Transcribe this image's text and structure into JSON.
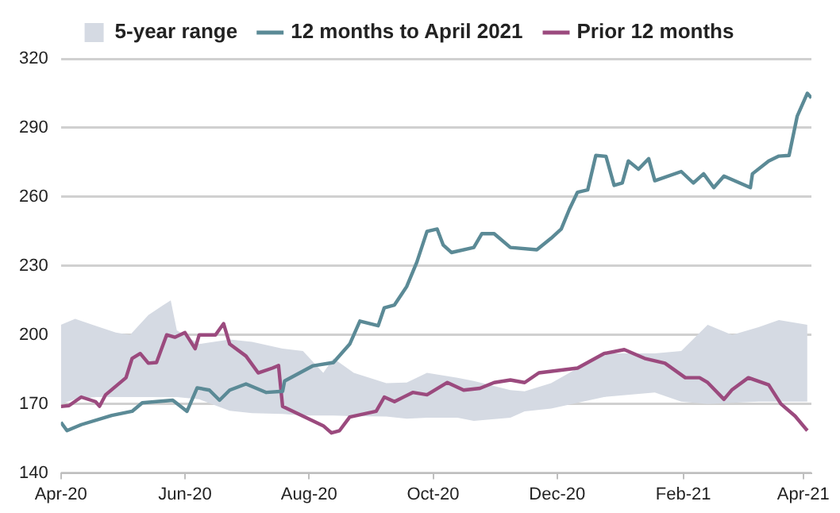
{
  "chart_data": {
    "type": "line",
    "xlim": [
      "2020-04-01",
      "2021-04-05"
    ],
    "xticks": [
      {
        "value": "2020-04-01",
        "label": "Apr-20"
      },
      {
        "value": "2020-06-01",
        "label": "Jun-20"
      },
      {
        "value": "2020-08-01",
        "label": "Aug-20"
      },
      {
        "value": "2020-10-01",
        "label": "Oct-20"
      },
      {
        "value": "2020-12-01",
        "label": "Dec-20"
      },
      {
        "value": "2021-02-01",
        "label": "Feb-21"
      },
      {
        "value": "2021-04-01",
        "label": "Apr-21"
      }
    ],
    "ylim": [
      140,
      320
    ],
    "yticks": [
      140,
      170,
      200,
      230,
      260,
      290,
      320
    ],
    "grid": "y",
    "legend": "top",
    "marker": "none",
    "line_style": "solid",
    "series": [
      {
        "name": "5-year range",
        "type": "area",
        "color": "#d5dae3",
        "x": [
          "2020-04-01",
          "2020-04-08",
          "2020-04-18",
          "2020-04-28",
          "2020-05-05",
          "2020-05-14",
          "2020-05-21",
          "2020-05-25",
          "2020-05-28",
          "2020-06-08",
          "2020-06-23",
          "2020-07-04",
          "2020-07-19",
          "2020-07-29",
          "2020-08-08",
          "2020-08-13",
          "2020-08-23",
          "2020-09-08",
          "2020-09-18",
          "2020-09-28",
          "2020-10-13",
          "2020-10-21",
          "2020-11-08",
          "2020-11-15",
          "2020-11-28",
          "2020-12-24",
          "2021-01-18",
          "2021-01-31",
          "2021-02-13",
          "2021-02-25",
          "2021-03-10",
          "2021-03-20",
          "2021-04-03"
        ],
        "values": [
          null,
          null,
          null,
          null,
          null,
          null,
          null,
          null,
          null,
          null,
          null,
          null,
          null,
          null,
          null,
          null,
          null,
          null,
          null,
          null,
          null,
          null,
          null,
          null,
          null,
          null,
          null,
          null,
          null,
          null,
          null,
          null,
          null
        ],
        "lower": [
          170,
          172,
          173,
          173,
          173,
          173,
          173,
          173,
          173,
          172,
          167,
          166,
          165.7,
          165,
          165,
          165,
          164.7,
          164.5,
          163.6,
          164,
          164,
          162.6,
          164,
          166.8,
          168,
          173,
          175,
          171,
          170,
          170.5,
          171,
          171,
          171
        ],
        "upper": [
          204.4,
          207,
          204,
          201,
          200,
          208.6,
          212.8,
          215,
          202,
          196,
          198,
          197,
          194,
          193,
          183.5,
          189.8,
          183.5,
          179,
          179.3,
          183.5,
          181.4,
          180,
          176,
          175.5,
          179,
          192,
          192,
          193,
          204.4,
          200,
          203.4,
          206.5,
          204.4
        ]
      },
      {
        "name": "12 months to April 2021",
        "color": "#5b8a96",
        "x": [
          "2020-04-01",
          "2020-04-04",
          "2020-04-11",
          "2020-04-26",
          "2020-05-06",
          "2020-05-11",
          "2020-05-26",
          "2020-06-02",
          "2020-06-07",
          "2020-06-13",
          "2020-06-18",
          "2020-06-23",
          "2020-07-01",
          "2020-07-11",
          "2020-07-19",
          "2020-07-20",
          "2020-08-03",
          "2020-08-13",
          "2020-08-21",
          "2020-08-26",
          "2020-09-04",
          "2020-09-07",
          "2020-09-12",
          "2020-09-18",
          "2020-09-23",
          "2020-09-28",
          "2020-10-03",
          "2020-10-06",
          "2020-10-10",
          "2020-10-21",
          "2020-10-25",
          "2020-10-31",
          "2020-11-08",
          "2020-11-21",
          "2020-11-28",
          "2020-12-03",
          "2020-12-07",
          "2020-12-11",
          "2020-12-16",
          "2020-12-20",
          "2020-12-25",
          "2020-12-29",
          "2021-01-02",
          "2021-01-05",
          "2021-01-10",
          "2021-01-15",
          "2021-01-18",
          "2021-01-31",
          "2021-02-06",
          "2021-02-11",
          "2021-02-16",
          "2021-02-21",
          "2021-03-06",
          "2021-03-07",
          "2021-03-15",
          "2021-03-20",
          "2021-03-25",
          "2021-03-29",
          "2021-04-03",
          "2021-04-05"
        ],
        "values": [
          162,
          158.4,
          161,
          165,
          166.8,
          170.5,
          171.6,
          166.8,
          177,
          176,
          171.6,
          176,
          178.7,
          175,
          175.5,
          180,
          186.6,
          188,
          196,
          206,
          204,
          211.8,
          213,
          221,
          231.6,
          245,
          246,
          239,
          235.8,
          238,
          244,
          244,
          238,
          237,
          242,
          246,
          254.6,
          262,
          263,
          278,
          277.6,
          265,
          266,
          275.6,
          272,
          276.6,
          267,
          271,
          266,
          270,
          264,
          269,
          264,
          270,
          275.6,
          277.7,
          278,
          295,
          305,
          303
        ]
      },
      {
        "name": "Prior 12 months",
        "color": "#9b4a7e",
        "x": [
          "2020-04-01",
          "2020-04-05",
          "2020-04-11",
          "2020-04-18",
          "2020-04-20",
          "2020-04-23",
          "2020-05-03",
          "2020-05-06",
          "2020-05-10",
          "2020-05-14",
          "2020-05-18",
          "2020-05-23",
          "2020-05-27",
          "2020-06-01",
          "2020-06-06",
          "2020-06-08",
          "2020-06-16",
          "2020-06-20",
          "2020-06-23",
          "2020-07-01",
          "2020-07-07",
          "2020-07-14",
          "2020-07-17",
          "2020-07-19",
          "2020-07-29",
          "2020-08-08",
          "2020-08-12",
          "2020-08-16",
          "2020-08-21",
          "2020-09-03",
          "2020-09-07",
          "2020-09-12",
          "2020-09-21",
          "2020-09-28",
          "2020-10-08",
          "2020-10-16",
          "2020-10-24",
          "2020-10-31",
          "2020-11-08",
          "2020-11-15",
          "2020-11-22",
          "2020-12-11",
          "2020-12-24",
          "2021-01-03",
          "2021-01-13",
          "2021-01-23",
          "2021-02-02",
          "2021-02-09",
          "2021-02-13",
          "2021-02-21",
          "2021-02-25",
          "2021-03-05",
          "2021-03-15",
          "2021-03-21",
          "2021-03-28",
          "2021-04-03"
        ],
        "values": [
          168.9,
          169.3,
          173,
          171,
          169,
          174,
          181.4,
          189.8,
          191.9,
          187.7,
          188,
          200,
          199,
          201,
          194,
          200,
          200,
          204.9,
          196,
          190.8,
          183.5,
          185.6,
          186.7,
          168.9,
          164.7,
          160.5,
          157.4,
          158.4,
          164.3,
          166.8,
          173,
          171,
          175,
          174,
          179.3,
          176,
          176.8,
          179.3,
          180.4,
          179.3,
          183.5,
          185.6,
          191.9,
          193.6,
          189.8,
          187.7,
          181.4,
          181.4,
          179.3,
          172,
          176.2,
          181.4,
          178.3,
          170,
          164.7,
          158.4
        ]
      }
    ]
  }
}
